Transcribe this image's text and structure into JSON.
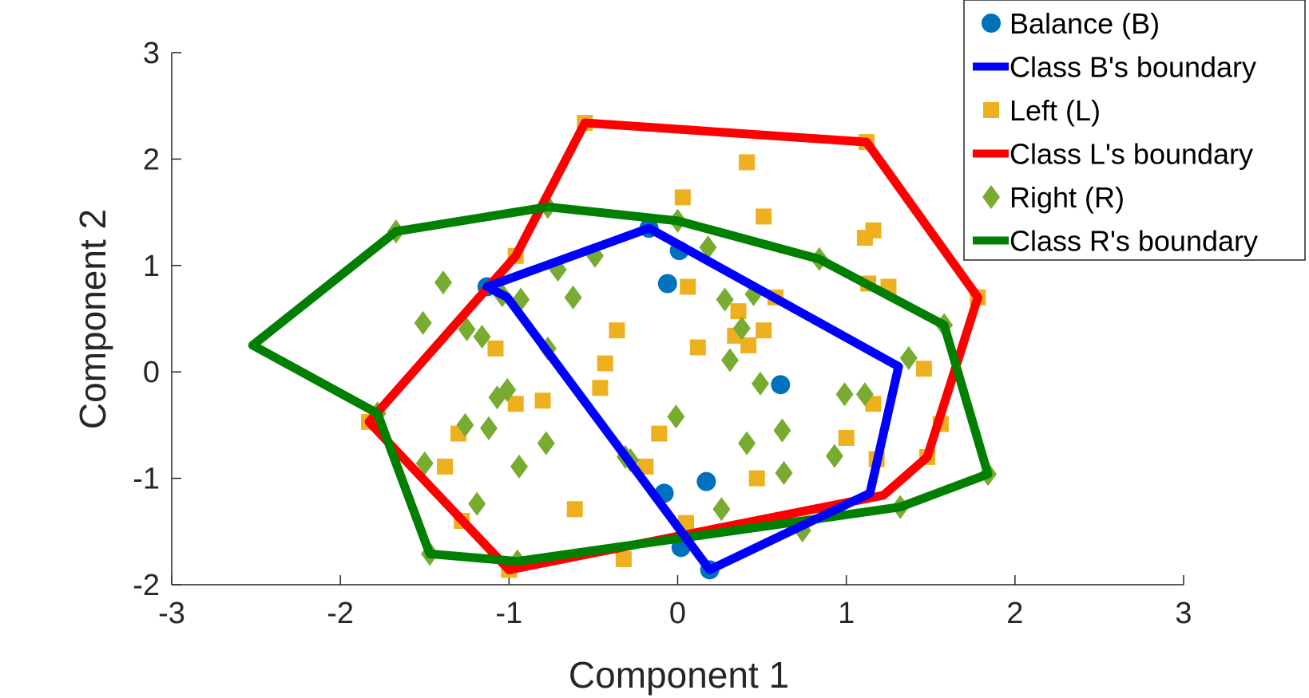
{
  "chart_data": {
    "type": "scatter",
    "title": "",
    "xlabel": "Component 1",
    "ylabel": "Component 2",
    "xlim": [
      -3,
      3
    ],
    "ylim": [
      -2,
      3
    ],
    "xticks": [
      -3,
      -2,
      -1,
      0,
      1,
      2,
      3
    ],
    "yticks": [
      -2,
      -1,
      0,
      1,
      2,
      3
    ],
    "grid": false,
    "legend_position": "top-right",
    "series": [
      {
        "name": "Balance (B)",
        "kind": "points",
        "marker": "circle",
        "color": "#0072BD",
        "points": [
          [
            -1.13,
            0.8
          ],
          [
            -0.17,
            1.35
          ],
          [
            0.01,
            1.14
          ],
          [
            -0.06,
            0.83
          ],
          [
            0.61,
            -0.12
          ],
          [
            -0.08,
            -1.14
          ],
          [
            0.17,
            -1.03
          ],
          [
            0.02,
            -1.65
          ],
          [
            0.19,
            -1.86
          ]
        ]
      },
      {
        "name": "Class B's boundary",
        "kind": "line",
        "color": "#0000FF",
        "points": [
          [
            -1.13,
            0.8
          ],
          [
            -0.17,
            1.35
          ],
          [
            1.31,
            0.05
          ],
          [
            1.14,
            -1.14
          ],
          [
            0.19,
            -1.86
          ],
          [
            -1.01,
            0.7
          ],
          [
            -1.13,
            0.8
          ]
        ]
      },
      {
        "name": "Left (L)",
        "kind": "points",
        "marker": "square",
        "color": "#EDB120",
        "points": [
          [
            -0.55,
            2.34
          ],
          [
            1.12,
            2.16
          ],
          [
            0.41,
            1.97
          ],
          [
            0.03,
            1.64
          ],
          [
            0.51,
            1.46
          ],
          [
            1.16,
            1.33
          ],
          [
            1.11,
            1.26
          ],
          [
            -0.96,
            1.09
          ],
          [
            1.13,
            0.83
          ],
          [
            1.25,
            0.8
          ],
          [
            0.06,
            0.8
          ],
          [
            0.58,
            0.7
          ],
          [
            1.78,
            0.7
          ],
          [
            0.36,
            0.57
          ],
          [
            -0.36,
            0.39
          ],
          [
            0.51,
            0.39
          ],
          [
            0.34,
            0.34
          ],
          [
            0.42,
            0.25
          ],
          [
            0.12,
            0.23
          ],
          [
            -1.08,
            0.22
          ],
          [
            -0.43,
            0.08
          ],
          [
            1.46,
            0.03
          ],
          [
            -0.46,
            -0.15
          ],
          [
            -0.8,
            -0.27
          ],
          [
            -0.96,
            -0.3
          ],
          [
            1.16,
            -0.3
          ],
          [
            -1.83,
            -0.47
          ],
          [
            1.56,
            -0.49
          ],
          [
            -1.3,
            -0.58
          ],
          [
            1.0,
            -0.62
          ],
          [
            -0.11,
            -0.58
          ],
          [
            -1.38,
            -0.89
          ],
          [
            1.18,
            -0.82
          ],
          [
            1.48,
            -0.8
          ],
          [
            -0.19,
            -0.89
          ],
          [
            0.47,
            -1.0
          ],
          [
            -0.61,
            -1.29
          ],
          [
            0.05,
            -1.42
          ],
          [
            -1.28,
            -1.4
          ],
          [
            -1.0,
            -1.86
          ],
          [
            -0.32,
            -1.76
          ]
        ]
      },
      {
        "name": "Class L's boundary",
        "kind": "line",
        "color": "#FF0000",
        "points": [
          [
            -0.55,
            2.34
          ],
          [
            1.12,
            2.16
          ],
          [
            1.78,
            0.7
          ],
          [
            1.48,
            -0.8
          ],
          [
            1.22,
            -1.16
          ],
          [
            -1.0,
            -1.86
          ],
          [
            -1.83,
            -0.47
          ],
          [
            -0.96,
            1.09
          ],
          [
            -0.55,
            2.34
          ]
        ]
      },
      {
        "name": "Right (R)",
        "kind": "points",
        "marker": "diamond",
        "color": "#77AC30",
        "points": [
          [
            -0.77,
            1.55
          ],
          [
            -1.67,
            1.32
          ],
          [
            0.0,
            1.42
          ],
          [
            0.18,
            1.17
          ],
          [
            0.84,
            1.06
          ],
          [
            -0.71,
            0.96
          ],
          [
            -0.49,
            1.09
          ],
          [
            -1.39,
            0.84
          ],
          [
            -0.93,
            0.68
          ],
          [
            -0.62,
            0.7
          ],
          [
            -1.04,
            0.72
          ],
          [
            0.28,
            0.68
          ],
          [
            0.45,
            0.73
          ],
          [
            0.38,
            0.41
          ],
          [
            -1.51,
            0.46
          ],
          [
            -1.25,
            0.4
          ],
          [
            -1.16,
            0.33
          ],
          [
            -0.77,
            0.22
          ],
          [
            1.58,
            0.44
          ],
          [
            0.31,
            0.11
          ],
          [
            1.37,
            0.13
          ],
          [
            -1.01,
            -0.17
          ],
          [
            -1.07,
            -0.24
          ],
          [
            0.49,
            -0.11
          ],
          [
            0.99,
            -0.21
          ],
          [
            1.11,
            -0.21
          ],
          [
            -0.01,
            -0.42
          ],
          [
            -1.26,
            -0.5
          ],
          [
            -1.12,
            -0.53
          ],
          [
            -1.78,
            -0.39
          ],
          [
            -0.78,
            -0.67
          ],
          [
            0.41,
            -0.67
          ],
          [
            0.62,
            -0.55
          ],
          [
            -1.5,
            -0.86
          ],
          [
            -0.94,
            -0.89
          ],
          [
            -0.31,
            -0.8
          ],
          [
            -0.28,
            -0.83
          ],
          [
            0.63,
            -0.95
          ],
          [
            0.93,
            -0.79
          ],
          [
            1.84,
            -0.96
          ],
          [
            -1.19,
            -1.24
          ],
          [
            0.26,
            -1.29
          ],
          [
            1.32,
            -1.27
          ],
          [
            0.74,
            -1.49
          ],
          [
            -1.47,
            -1.71
          ],
          [
            -0.95,
            -1.78
          ]
        ]
      },
      {
        "name": "Class R's boundary",
        "kind": "line",
        "color": "#007F00",
        "points": [
          [
            -2.52,
            0.25
          ],
          [
            -1.67,
            1.32
          ],
          [
            -0.77,
            1.55
          ],
          [
            0.0,
            1.42
          ],
          [
            0.84,
            1.06
          ],
          [
            1.58,
            0.44
          ],
          [
            1.84,
            -0.96
          ],
          [
            1.32,
            -1.27
          ],
          [
            -0.95,
            -1.78
          ],
          [
            -1.47,
            -1.71
          ],
          [
            -1.78,
            -0.39
          ],
          [
            -2.52,
            0.25
          ]
        ]
      }
    ]
  }
}
